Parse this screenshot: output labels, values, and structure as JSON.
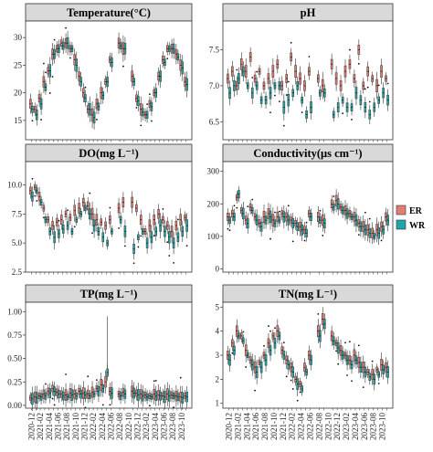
{
  "chart_data": {
    "type": "box",
    "legend": {
      "placement": "right",
      "items": [
        {
          "key": "ER",
          "label": "ER",
          "color": "#e37c73"
        },
        {
          "key": "WR",
          "label": "WR",
          "color": "#21a6a8"
        }
      ]
    },
    "x_tick_labels": [
      "2020-12",
      "2021-02",
      "2021-04",
      "2021-06",
      "2021-08",
      "2021-10",
      "2021-12",
      "2022-02",
      "2022-04",
      "2022-06",
      "2022-08",
      "2022-10",
      "2022-12",
      "2023-02",
      "2023-04",
      "2023-06",
      "2023-08",
      "2023-10"
    ],
    "n_months": 36,
    "panels": [
      {
        "title": "Temperature(°C)",
        "ylim": [
          11.5,
          33
        ],
        "yticks": [
          15,
          20,
          25,
          30
        ],
        "ER": [
          18,
          17,
          19,
          22,
          24,
          27,
          28,
          29,
          29,
          28,
          26,
          23,
          20,
          17,
          16,
          18,
          20,
          22,
          26,
          28,
          29,
          28,
          26,
          23,
          19,
          17,
          16,
          18,
          20,
          23,
          26,
          28,
          28,
          27,
          25,
          22
        ],
        "WR": [
          17,
          16,
          18,
          21,
          24,
          27,
          28,
          28.5,
          29,
          28,
          25,
          22,
          19,
          17,
          15.5,
          17.5,
          19.5,
          22,
          25.5,
          27.5,
          28.5,
          28,
          25,
          22,
          18.5,
          16.5,
          16,
          17.5,
          20,
          23,
          25.5,
          28,
          28,
          26.5,
          24.5,
          21.5
        ],
        "gaps": [
          19,
          22
        ]
      },
      {
        "title": "pH",
        "ylim": [
          6.25,
          7.9
        ],
        "yticks": [
          6.5,
          7.0,
          7.5
        ],
        "ER": [
          7.1,
          7.2,
          7.0,
          7.3,
          7.2,
          7.4,
          7.1,
          7.2,
          7.0,
          7.1,
          7.2,
          7.3,
          7.0,
          7.1,
          7.4,
          7.2,
          7.1,
          7.0,
          7.2,
          7.3,
          7.1,
          7.0,
          7.2,
          7.3,
          7.1,
          7.0,
          7.2,
          7.3,
          7.1,
          7.5,
          7.0,
          7.2,
          7.1,
          7.0,
          7.2,
          7.1
        ],
        "WR": [
          6.9,
          7.0,
          7.1,
          7.2,
          7.0,
          6.9,
          7.0,
          6.8,
          6.8,
          6.9,
          7.0,
          7.0,
          6.7,
          6.8,
          6.9,
          7.0,
          6.8,
          6.6,
          6.7,
          6.8,
          6.9,
          6.9,
          6.8,
          6.6,
          6.7,
          6.8,
          6.7,
          6.7,
          6.9,
          6.8,
          6.7,
          6.6,
          6.7,
          6.8,
          6.9,
          6.8
        ],
        "gaps": [
          19,
          22
        ]
      },
      {
        "title": "DO(mg L⁻¹)",
        "ylim": [
          2.5,
          12
        ],
        "yticks": [
          2.5,
          5.0,
          7.5,
          10.0
        ],
        "ER": [
          9.5,
          9.8,
          9.0,
          8.0,
          7.0,
          6.5,
          6.8,
          7.0,
          7.5,
          7.2,
          7.8,
          8.0,
          8.5,
          8.2,
          7.5,
          7.0,
          6.8,
          6.5,
          7.0,
          7.5,
          8.0,
          8.5,
          8.8,
          8.5,
          8.0,
          7.0,
          6.0,
          6.5,
          7.0,
          7.5,
          7.0,
          6.5,
          6.0,
          6.5,
          7.0,
          7.2
        ],
        "WR": [
          9.0,
          9.5,
          8.5,
          7.0,
          6.0,
          5.5,
          5.8,
          6.2,
          6.5,
          6.0,
          7.0,
          7.5,
          8.0,
          7.5,
          6.5,
          6.0,
          5.5,
          5.0,
          6.0,
          6.5,
          7.0,
          6.0,
          5.0,
          4.5,
          5.5,
          6.0,
          5.0,
          5.5,
          6.0,
          6.5,
          6.0,
          5.5,
          5.0,
          5.5,
          6.0,
          6.5
        ],
        "gaps": [
          19,
          22
        ]
      },
      {
        "title": "Conductivity(μs cm⁻¹)",
        "ylim": [
          -10,
          330
        ],
        "yticks": [
          0,
          100,
          200,
          300
        ],
        "ER": [
          160,
          170,
          220,
          180,
          150,
          190,
          160,
          140,
          160,
          170,
          150,
          160,
          170,
          160,
          150,
          140,
          130,
          120,
          170,
          180,
          160,
          150,
          170,
          200,
          210,
          190,
          180,
          170,
          160,
          140,
          130,
          120,
          110,
          120,
          130,
          160
        ],
        "WR": [
          150,
          160,
          230,
          170,
          140,
          180,
          150,
          130,
          150,
          160,
          140,
          150,
          160,
          150,
          140,
          130,
          120,
          110,
          160,
          170,
          150,
          140,
          160,
          190,
          200,
          180,
          170,
          160,
          150,
          130,
          120,
          110,
          100,
          110,
          120,
          150
        ],
        "gaps": [
          19,
          22
        ]
      },
      {
        "title": "TP(mg L⁻¹)",
        "ylim": [
          -0.03,
          1.1
        ],
        "yticks": [
          0.0,
          0.25,
          0.5,
          0.75,
          1.0
        ],
        "ER": [
          0.08,
          0.09,
          0.1,
          0.12,
          0.15,
          0.18,
          0.14,
          0.12,
          0.11,
          0.13,
          0.12,
          0.15,
          0.13,
          0.12,
          0.14,
          0.18,
          0.22,
          0.25,
          0.15,
          0.13,
          0.12,
          0.14,
          0.16,
          0.15,
          0.13,
          0.12,
          0.11,
          0.1,
          0.12,
          0.11,
          0.1,
          0.12,
          0.11,
          0.1,
          0.09,
          0.1
        ],
        "WR": [
          0.07,
          0.08,
          0.09,
          0.1,
          0.13,
          0.15,
          0.12,
          0.1,
          0.09,
          0.11,
          0.1,
          0.12,
          0.11,
          0.1,
          0.12,
          0.15,
          0.18,
          0.35,
          0.13,
          0.11,
          0.1,
          0.12,
          0.14,
          0.13,
          0.11,
          0.1,
          0.09,
          0.09,
          0.1,
          0.1,
          0.09,
          0.1,
          0.1,
          0.09,
          0.08,
          0.09
        ],
        "gaps": [
          19,
          22
        ]
      },
      {
        "title": "TN(mg L⁻¹)",
        "ylim": [
          0.8,
          5.2
        ],
        "yticks": [
          1,
          2,
          3,
          4,
          5
        ],
        "ER": [
          3.0,
          3.5,
          4.0,
          3.8,
          3.2,
          2.8,
          2.5,
          2.7,
          3.0,
          3.5,
          3.8,
          4.0,
          3.2,
          2.8,
          2.5,
          2.0,
          1.8,
          2.5,
          3.0,
          3.5,
          4.0,
          4.5,
          4.2,
          3.8,
          3.5,
          3.2,
          3.0,
          2.8,
          3.0,
          2.7,
          2.5,
          2.3,
          2.2,
          2.4,
          2.6,
          2.5
        ],
        "WR": [
          2.8,
          3.2,
          3.8,
          3.6,
          3.0,
          2.6,
          2.3,
          2.5,
          2.8,
          3.2,
          3.5,
          3.8,
          3.0,
          2.6,
          2.3,
          1.8,
          1.6,
          2.3,
          2.8,
          3.3,
          3.8,
          4.3,
          4.0,
          3.6,
          3.3,
          3.0,
          2.8,
          2.6,
          2.8,
          2.5,
          2.3,
          2.1,
          2.0,
          2.2,
          2.4,
          2.3
        ],
        "gaps": [
          19,
          22
        ]
      }
    ]
  }
}
